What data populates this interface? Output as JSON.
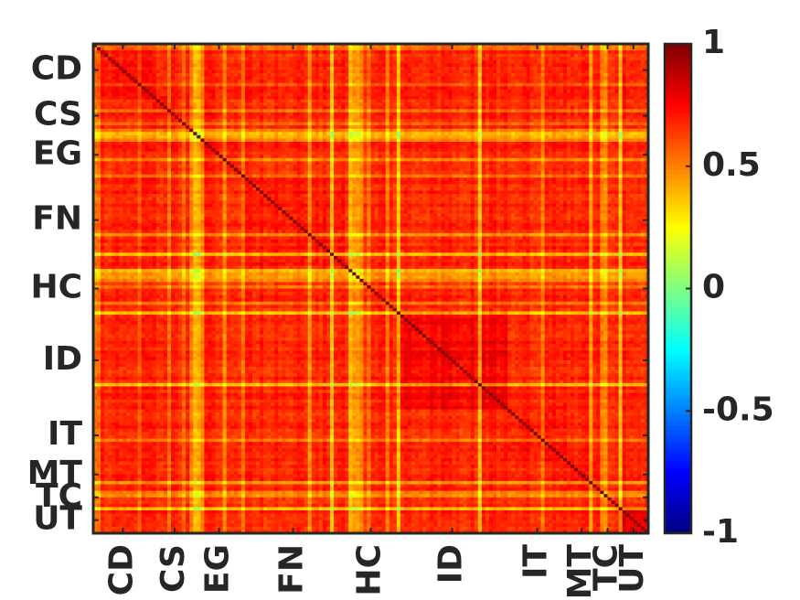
{
  "chart_data": {
    "type": "heatmap",
    "title": "",
    "xlabel": "",
    "ylabel": "",
    "groups": [
      {
        "label": "CD",
        "span": [
          0,
          16
        ]
      },
      {
        "label": "CS",
        "span": [
          16,
          28
        ]
      },
      {
        "label": "EG",
        "span": [
          28,
          40
        ]
      },
      {
        "label": "FN",
        "span": [
          40,
          68
        ]
      },
      {
        "label": "HC",
        "span": [
          68,
          82
        ]
      },
      {
        "label": "ID",
        "span": [
          82,
          112
        ]
      },
      {
        "label": "IT",
        "span": [
          112,
          128
        ]
      },
      {
        "label": "MT",
        "span": [
          128,
          136
        ]
      },
      {
        "label": "TC",
        "span": [
          136,
          142
        ]
      },
      {
        "label": "UT",
        "span": [
          142,
          150
        ]
      }
    ],
    "n": 150,
    "value_range": [
      -1,
      1
    ],
    "diagonal_value": 1,
    "typical_offdiagonal": 0.75,
    "colorbar": {
      "min": -1,
      "max": 1,
      "ticks": [
        1,
        0.5,
        0,
        -0.5,
        -1
      ],
      "tick_labels": [
        "1",
        "0.5",
        "0",
        "-0.5",
        "-1"
      ],
      "colormap": "jet"
    }
  }
}
